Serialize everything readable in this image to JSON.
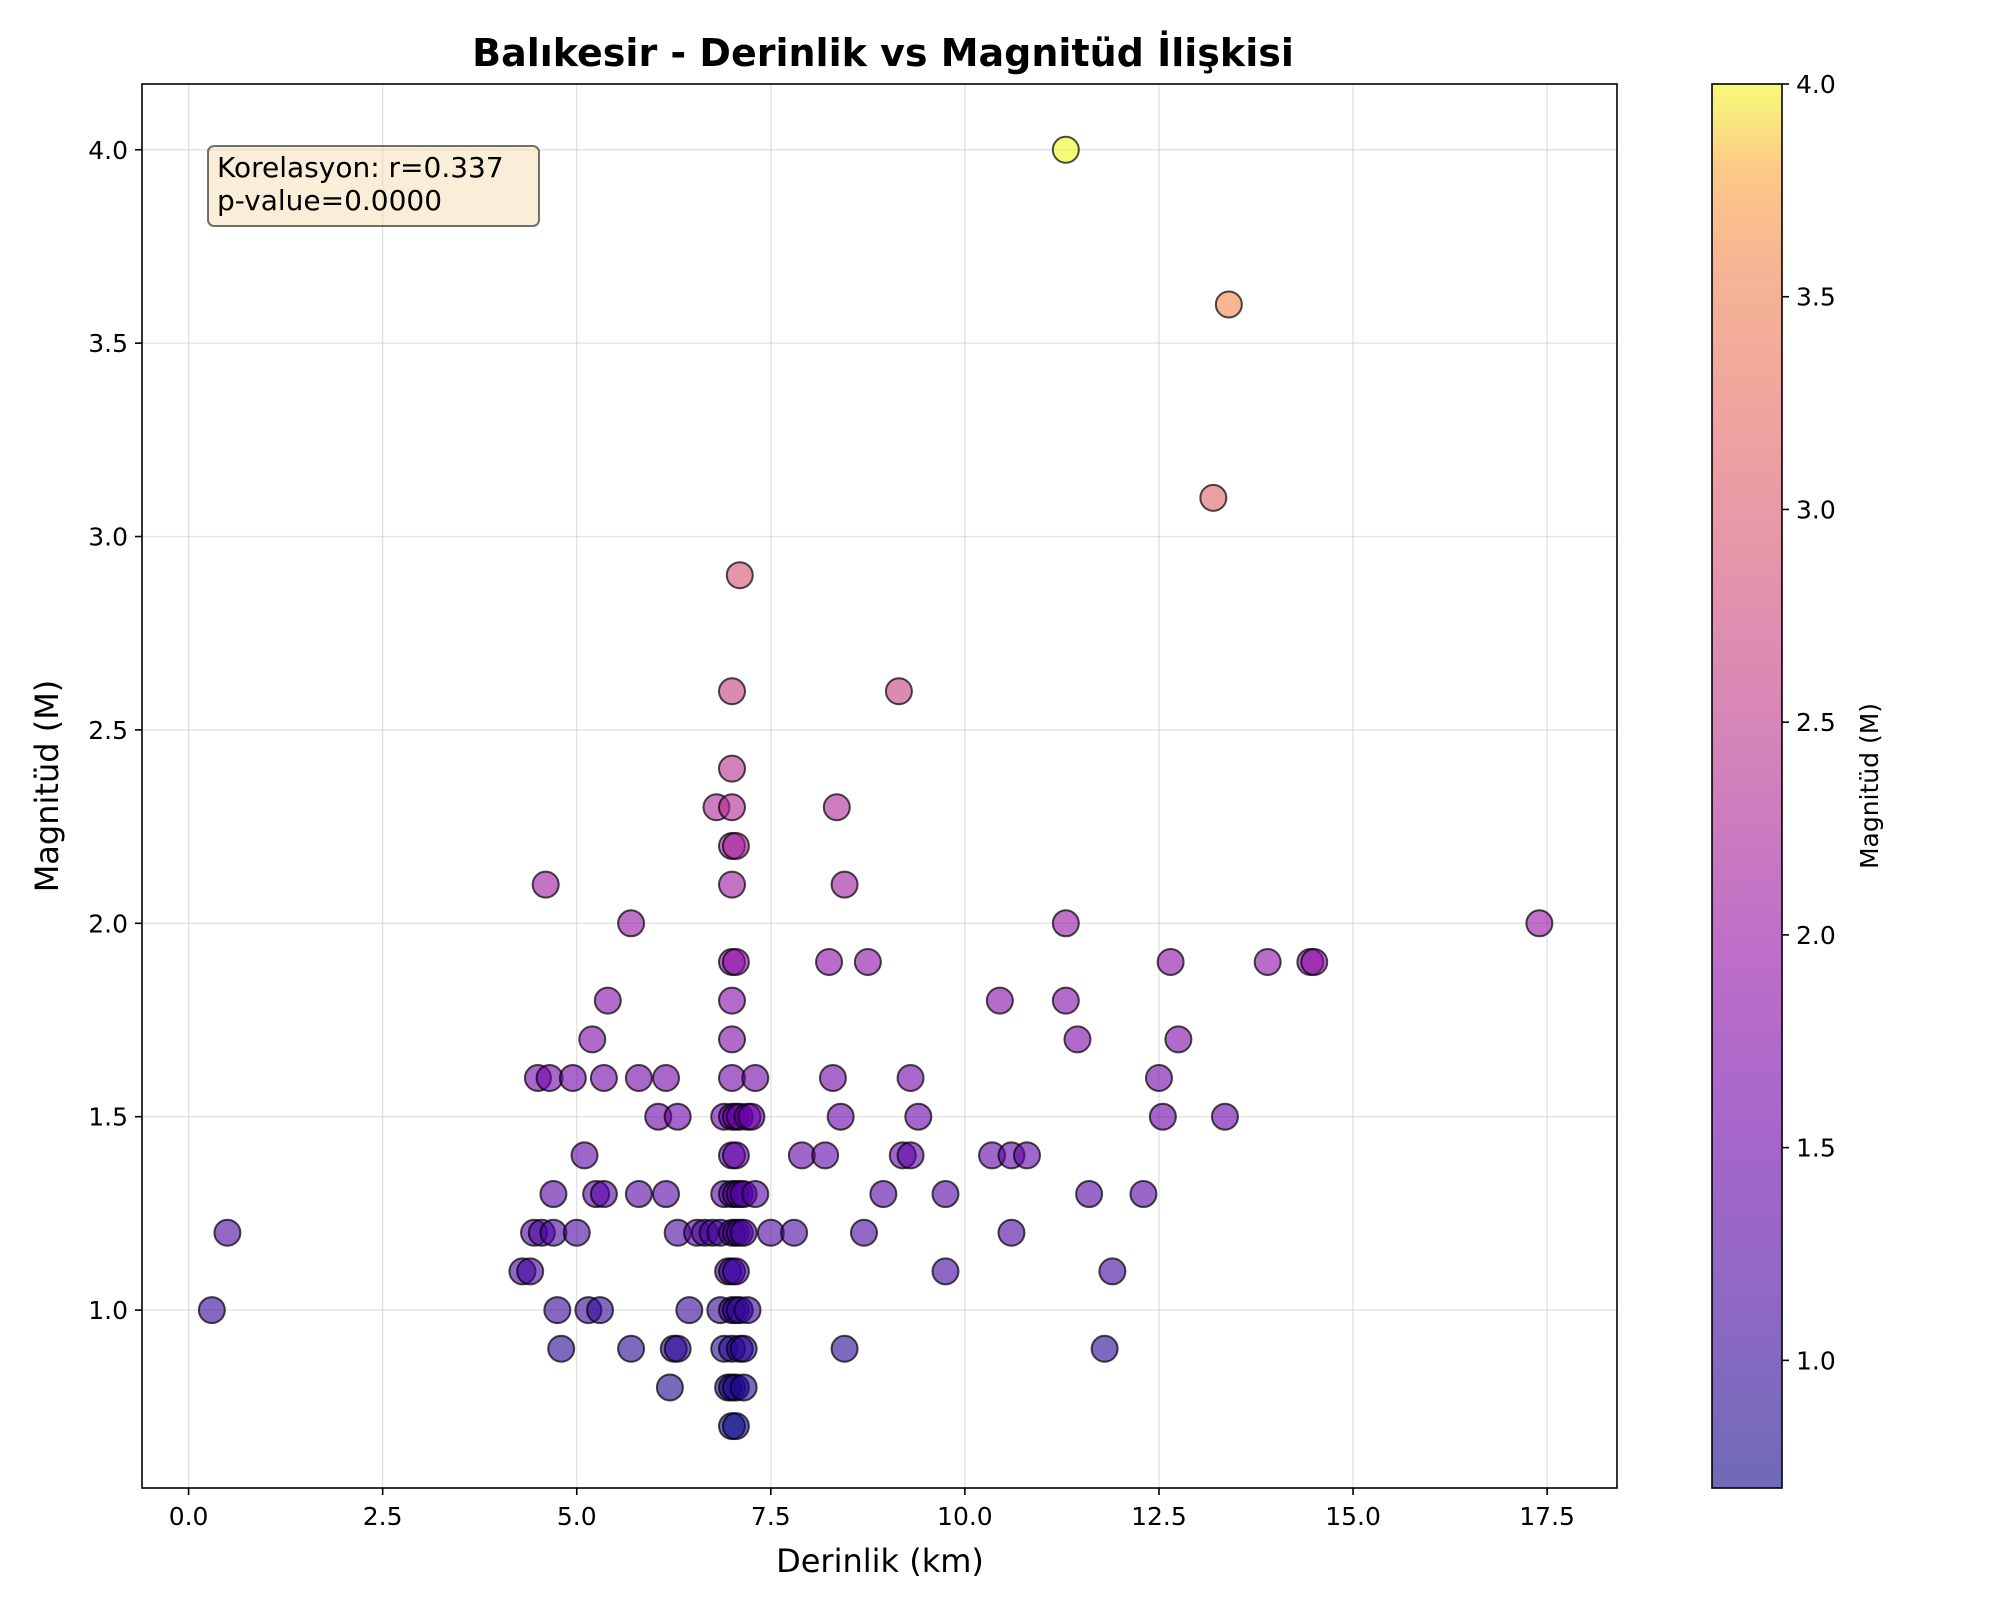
{
  "chart_data": {
    "type": "scatter",
    "title": "Balıkesir - Derinlik vs Magnitüd İlişkisi",
    "xlabel": "Derinlik (km)",
    "ylabel": "Magnitüd (M)",
    "xlim": [
      -0.6,
      18.4
    ],
    "ylim": [
      0.54,
      4.17
    ],
    "xticks": [
      0.0,
      2.5,
      5.0,
      7.5,
      10.0,
      12.5,
      15.0,
      17.5
    ],
    "xtick_labels": [
      "0.0",
      "2.5",
      "5.0",
      "7.5",
      "10.0",
      "12.5",
      "15.0",
      "17.5"
    ],
    "yticks": [
      1.0,
      1.5,
      2.0,
      2.5,
      3.0,
      3.5,
      4.0
    ],
    "ytick_labels": [
      "1.0",
      "1.5",
      "2.0",
      "2.5",
      "3.0",
      "3.5",
      "4.0"
    ],
    "grid": true,
    "colormap": "plasma",
    "colorbar": {
      "label": "Magnitüd (M)",
      "range": [
        0.7,
        4.0
      ],
      "ticks": [
        1.0,
        1.5,
        2.0,
        2.5,
        3.0,
        3.5,
        4.0
      ],
      "tick_labels": [
        "1.0",
        "1.5",
        "2.0",
        "2.5",
        "3.0",
        "3.5",
        "4.0"
      ]
    },
    "annotation": {
      "line1": "Korelasyon: r=0.337",
      "line2": "p-value=0.0000",
      "position": "top-left"
    },
    "points": [
      [
        0.3,
        1.0
      ],
      [
        0.5,
        1.2
      ],
      [
        4.3,
        1.1
      ],
      [
        4.4,
        1.1
      ],
      [
        4.45,
        1.2
      ],
      [
        4.5,
        1.6
      ],
      [
        4.55,
        1.2
      ],
      [
        4.6,
        2.1
      ],
      [
        4.65,
        1.6
      ],
      [
        4.7,
        1.3
      ],
      [
        4.7,
        1.2
      ],
      [
        4.75,
        1.0
      ],
      [
        4.8,
        0.9
      ],
      [
        4.95,
        1.6
      ],
      [
        5.0,
        1.2
      ],
      [
        5.1,
        1.4
      ],
      [
        5.15,
        1.0
      ],
      [
        5.2,
        1.7
      ],
      [
        5.25,
        1.3
      ],
      [
        5.3,
        1.0
      ],
      [
        5.35,
        1.3
      ],
      [
        5.35,
        1.6
      ],
      [
        5.4,
        1.8
      ],
      [
        5.7,
        0.9
      ],
      [
        5.7,
        2.0
      ],
      [
        5.8,
        1.6
      ],
      [
        5.8,
        1.3
      ],
      [
        6.05,
        1.5
      ],
      [
        6.15,
        1.6
      ],
      [
        6.15,
        1.3
      ],
      [
        6.2,
        0.8
      ],
      [
        6.25,
        0.9
      ],
      [
        6.3,
        1.2
      ],
      [
        6.3,
        1.5
      ],
      [
        6.3,
        0.9
      ],
      [
        6.45,
        1.0
      ],
      [
        6.55,
        1.2
      ],
      [
        6.65,
        1.2
      ],
      [
        6.75,
        1.2
      ],
      [
        6.8,
        2.3
      ],
      [
        6.85,
        1.2
      ],
      [
        6.85,
        1.0
      ],
      [
        6.9,
        0.9
      ],
      [
        6.9,
        1.5
      ],
      [
        6.9,
        1.3
      ],
      [
        6.95,
        0.8
      ],
      [
        6.95,
        1.1
      ],
      [
        7.0,
        0.7
      ],
      [
        7.0,
        0.8
      ],
      [
        7.0,
        0.9
      ],
      [
        7.0,
        1.0
      ],
      [
        7.0,
        1.1
      ],
      [
        7.0,
        1.2
      ],
      [
        7.0,
        1.3
      ],
      [
        7.0,
        1.4
      ],
      [
        7.0,
        1.5
      ],
      [
        7.0,
        1.6
      ],
      [
        7.0,
        1.7
      ],
      [
        7.0,
        1.8
      ],
      [
        7.0,
        1.9
      ],
      [
        7.0,
        2.1
      ],
      [
        7.0,
        2.2
      ],
      [
        7.0,
        2.3
      ],
      [
        7.0,
        2.4
      ],
      [
        7.0,
        2.6
      ],
      [
        7.05,
        0.7
      ],
      [
        7.05,
        0.8
      ],
      [
        7.05,
        1.0
      ],
      [
        7.05,
        1.1
      ],
      [
        7.05,
        1.2
      ],
      [
        7.05,
        1.3
      ],
      [
        7.05,
        1.4
      ],
      [
        7.05,
        1.5
      ],
      [
        7.05,
        1.9
      ],
      [
        7.05,
        2.2
      ],
      [
        7.1,
        0.9
      ],
      [
        7.1,
        1.0
      ],
      [
        7.1,
        1.2
      ],
      [
        7.1,
        1.3
      ],
      [
        7.1,
        1.5
      ],
      [
        7.1,
        2.9
      ],
      [
        7.15,
        0.8
      ],
      [
        7.15,
        0.9
      ],
      [
        7.15,
        1.2
      ],
      [
        7.15,
        1.3
      ],
      [
        7.2,
        1.0
      ],
      [
        7.2,
        1.5
      ],
      [
        7.25,
        1.5
      ],
      [
        7.3,
        1.3
      ],
      [
        7.3,
        1.6
      ],
      [
        7.5,
        1.2
      ],
      [
        7.8,
        1.2
      ],
      [
        7.9,
        1.4
      ],
      [
        8.2,
        1.4
      ],
      [
        8.25,
        1.9
      ],
      [
        8.3,
        1.6
      ],
      [
        8.35,
        2.3
      ],
      [
        8.4,
        1.5
      ],
      [
        8.45,
        0.9
      ],
      [
        8.45,
        2.1
      ],
      [
        8.7,
        1.2
      ],
      [
        8.75,
        1.9
      ],
      [
        8.95,
        1.3
      ],
      [
        9.15,
        2.6
      ],
      [
        9.2,
        1.4
      ],
      [
        9.3,
        1.6
      ],
      [
        9.3,
        1.4
      ],
      [
        9.4,
        1.5
      ],
      [
        9.75,
        1.3
      ],
      [
        9.75,
        1.1
      ],
      [
        10.35,
        1.4
      ],
      [
        10.45,
        1.8
      ],
      [
        10.6,
        1.2
      ],
      [
        10.6,
        1.4
      ],
      [
        10.8,
        1.4
      ],
      [
        11.3,
        2.0
      ],
      [
        11.3,
        1.8
      ],
      [
        11.3,
        4.0
      ],
      [
        11.45,
        1.7
      ],
      [
        11.6,
        1.3
      ],
      [
        11.8,
        0.9
      ],
      [
        11.9,
        1.1
      ],
      [
        12.3,
        1.3
      ],
      [
        12.5,
        1.6
      ],
      [
        12.55,
        1.5
      ],
      [
        12.65,
        1.9
      ],
      [
        12.75,
        1.7
      ],
      [
        13.2,
        3.1
      ],
      [
        13.35,
        1.5
      ],
      [
        13.4,
        3.6
      ],
      [
        13.9,
        1.9
      ],
      [
        14.45,
        1.9
      ],
      [
        14.5,
        1.9
      ],
      [
        17.4,
        2.0
      ]
    ]
  }
}
